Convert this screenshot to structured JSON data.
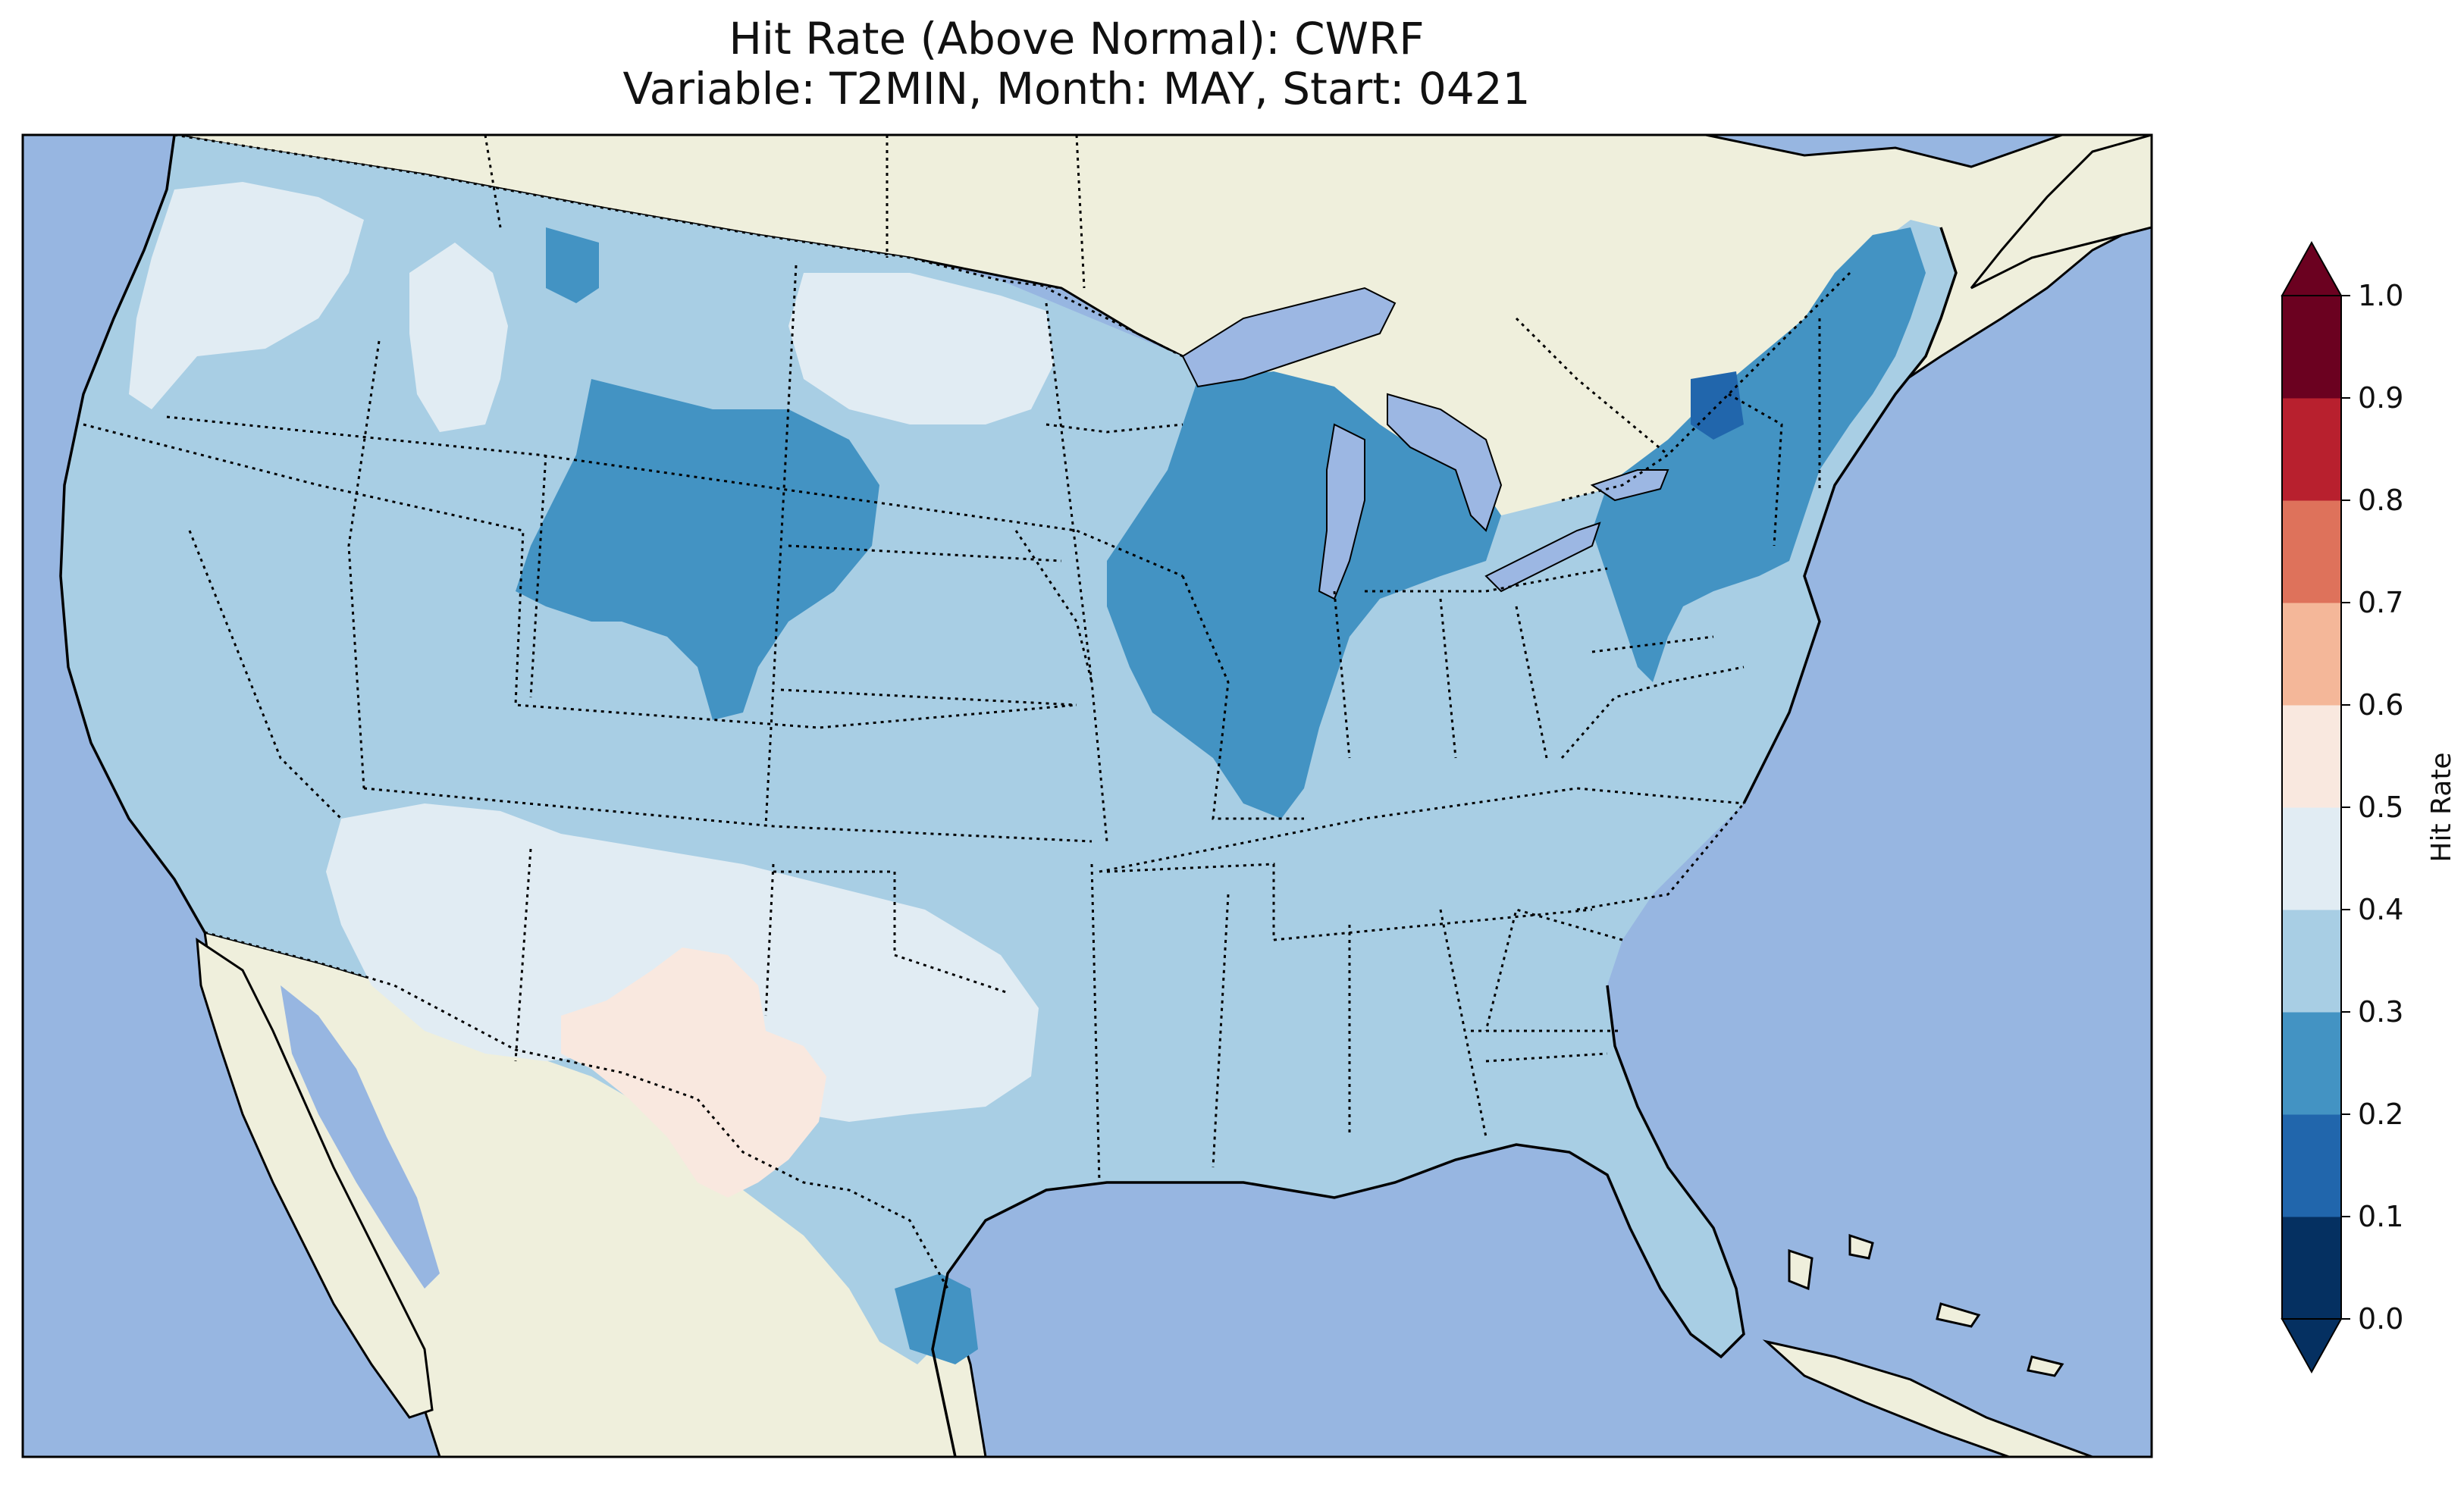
{
  "figure": {
    "title": "Hit Rate (Above Normal): CWRF",
    "subtitle": "Variable: T2MIN, Month: MAY, Start: 0421"
  },
  "map": {
    "projection": "lambert-conformal",
    "region": "Contiguous United States",
    "features": [
      "coastlines",
      "state-borders",
      "country-borders",
      "lakes"
    ],
    "colors": {
      "ocean": "#97b6e1",
      "land": "#efefdc",
      "lake": "#9cb7e3",
      "border": "#000000"
    },
    "dominant_field_bin": "0.3-0.4",
    "highlighted_areas": [
      {
        "area": "Arizona / New Mexico / West Texas",
        "bin": "0.4-0.5"
      },
      {
        "area": "Southwest Texas / SE New Mexico",
        "bin": "0.5-0.6"
      },
      {
        "area": "Idaho / Montana / North Dakota",
        "bin": "0.4-0.5"
      },
      {
        "area": "Wyoming / northern Colorado",
        "bin": "0.2-0.3"
      },
      {
        "area": "Upper Midwest / Great Lakes",
        "bin": "0.2-0.3"
      },
      {
        "area": "New York / New England",
        "bin": "0.2-0.3"
      },
      {
        "area": "Northwest New York",
        "bin": "0.1-0.2"
      },
      {
        "area": "South Texas coast",
        "bin": "0.2-0.3"
      }
    ]
  },
  "colorbar": {
    "label": "Hit Rate",
    "ticks": [
      "0.0",
      "0.1",
      "0.2",
      "0.3",
      "0.4",
      "0.5",
      "0.6",
      "0.7",
      "0.8",
      "0.9",
      "1.0"
    ],
    "bins": [
      {
        "range": [
          0.0,
          0.1
        ],
        "color": "#053061"
      },
      {
        "range": [
          0.1,
          0.2
        ],
        "color": "#2166ac"
      },
      {
        "range": [
          0.2,
          0.3
        ],
        "color": "#4393c3"
      },
      {
        "range": [
          0.3,
          0.4
        ],
        "color": "#a8cee4"
      },
      {
        "range": [
          0.4,
          0.5
        ],
        "color": "#e1ecf3"
      },
      {
        "range": [
          0.5,
          0.6
        ],
        "color": "#f9e8df"
      },
      {
        "range": [
          0.6,
          0.7
        ],
        "color": "#f4b799"
      },
      {
        "range": [
          0.7,
          0.8
        ],
        "color": "#de725b"
      },
      {
        "range": [
          0.8,
          0.9
        ],
        "color": "#b8202e"
      },
      {
        "range": [
          0.9,
          1.0
        ],
        "color": "#6b0120"
      }
    ],
    "extend": "both"
  }
}
